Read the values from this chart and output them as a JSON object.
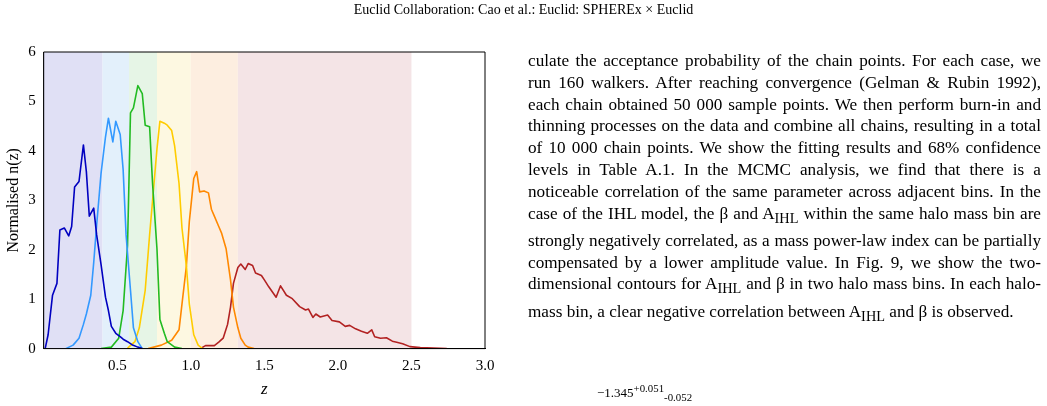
{
  "chart_data": {
    "type": "line",
    "title": "Euclid Collaboration: Cao et al.: Euclid: SPHEREx × Euclid",
    "xlabel": "z",
    "ylabel": "Normalised n(z)",
    "xlim": [
      0,
      3
    ],
    "xticks": [
      0.5,
      {
        "value": 1,
        "label": "1.0"
      },
      1.5,
      {
        "value": 2,
        "label": "2.0"
      },
      2.5,
      {
        "value": 3,
        "label": "3.0"
      }
    ],
    "ylim": [
      0,
      6
    ],
    "yticks": [
      0,
      1,
      2,
      3,
      4,
      5,
      6
    ],
    "grid": false,
    "legend": false,
    "marker": "none",
    "line_style": "solid",
    "bands": [
      {
        "axis": "x",
        "from": 0,
        "to": 0.4,
        "color": "#e0e0f5"
      },
      {
        "axis": "x",
        "from": 0.4,
        "to": 0.58,
        "color": "#e3f0fb"
      },
      {
        "axis": "x",
        "from": 0.58,
        "to": 0.77,
        "color": "#e6f5e6"
      },
      {
        "axis": "x",
        "from": 0.77,
        "to": 1.0,
        "color": "#fdf8e1"
      },
      {
        "axis": "x",
        "from": 1.0,
        "to": 1.32,
        "color": "#fdeee0"
      },
      {
        "axis": "x",
        "from": 1.32,
        "to": 2.5,
        "color": "#f4e4e6"
      }
    ],
    "series": [
      {
        "color": "#0000c0",
        "x": [
          0.01,
          0.03,
          0.06,
          0.09,
          0.11,
          0.14,
          0.17,
          0.19,
          0.21,
          0.24,
          0.27,
          0.29,
          0.31,
          0.34,
          0.36,
          0.39,
          0.42,
          0.44,
          0.46,
          0.49,
          0.52,
          0.54,
          0.57,
          0.6,
          0.64,
          0.67
        ],
        "values": [
          0,
          0.28,
          1.08,
          1.32,
          2.4,
          2.44,
          2.28,
          2.47,
          3.27,
          3.38,
          4.12,
          3.58,
          2.68,
          2.84,
          2.3,
          1.7,
          1.04,
          0.77,
          0.45,
          0.31,
          0.24,
          0.19,
          0.14,
          0.08,
          0.03,
          0
        ]
      },
      {
        "color": "#3399ff",
        "x": [
          0.15,
          0.2,
          0.24,
          0.27,
          0.29,
          0.32,
          0.34,
          0.36,
          0.39,
          0.42,
          0.44,
          0.47,
          0.49,
          0.52,
          0.54,
          0.56,
          0.59,
          0.61,
          0.64,
          0.67
        ],
        "values": [
          0,
          0.07,
          0.21,
          0.49,
          0.7,
          1.08,
          1.74,
          2.5,
          3.55,
          4.28,
          4.66,
          4.18,
          4.6,
          4.33,
          3.62,
          2.3,
          1.18,
          0.42,
          0.14,
          0
        ]
      },
      {
        "color": "#22bb22",
        "x": [
          0.39,
          0.46,
          0.51,
          0.54,
          0.57,
          0.59,
          0.61,
          0.64,
          0.67,
          0.69,
          0.72,
          0.74,
          0.77,
          0.79,
          0.82,
          0.84,
          0.89,
          0.94
        ],
        "values": [
          0,
          0.03,
          0.21,
          0.77,
          2.09,
          4.77,
          4.87,
          5.32,
          5.16,
          4.52,
          4.49,
          3.34,
          2.02,
          0.59,
          0.31,
          0.14,
          0.03,
          0
        ]
      },
      {
        "color": "#ffcc00",
        "x": [
          0.57,
          0.62,
          0.65,
          0.69,
          0.72,
          0.74,
          0.77,
          0.79,
          0.82,
          0.84,
          0.87,
          0.89,
          0.92,
          0.94,
          0.97,
          0.99,
          1.02,
          1.05,
          1.08
        ],
        "values": [
          0.01,
          0.14,
          0.42,
          1.18,
          2.3,
          2.99,
          4.04,
          4.6,
          4.56,
          4.52,
          4.41,
          4.1,
          3.34,
          2.44,
          1.67,
          0.9,
          0.28,
          0.07,
          0
        ]
      },
      {
        "color": "#ff8800",
        "x": [
          0.71,
          0.8,
          0.87,
          0.92,
          0.94,
          0.97,
          0.99,
          1.02,
          1.04,
          1.06,
          1.09,
          1.12,
          1.14,
          1.16,
          1.19,
          1.21,
          1.24,
          1.27,
          1.29,
          1.32,
          1.34,
          1.37,
          1.39,
          1.43
        ],
        "values": [
          0,
          0.07,
          0.17,
          0.38,
          0.9,
          1.67,
          2.57,
          3.44,
          3.58,
          3.17,
          3.19,
          3.15,
          2.82,
          2.68,
          2.47,
          2.33,
          2.02,
          1.39,
          0.84,
          0.42,
          0.21,
          0.07,
          0.03,
          0
        ]
      },
      {
        "color": "#b22222",
        "x": [
          1.07,
          1.1,
          1.16,
          1.19,
          1.22,
          1.25,
          1.27,
          1.29,
          1.32,
          1.34,
          1.37,
          1.39,
          1.42,
          1.44,
          1.48,
          1.5,
          1.53,
          1.58,
          1.61,
          1.65,
          1.69,
          1.74,
          1.78,
          1.8,
          1.83,
          1.85,
          1.88,
          1.93,
          1.96,
          2.01,
          2.05,
          2.08,
          2.12,
          2.16,
          2.2,
          2.23,
          2.25,
          2.29,
          2.33,
          2.37,
          2.4,
          2.44,
          2.49,
          2.56,
          2.65,
          2.74
        ],
        "values": [
          0.01,
          0.06,
          0.06,
          0.13,
          0.21,
          0.49,
          0.84,
          1.32,
          1.64,
          1.71,
          1.6,
          1.72,
          1.68,
          1.53,
          1.48,
          1.39,
          1.25,
          1.04,
          1.27,
          1.08,
          1.01,
          0.85,
          0.78,
          0.8,
          0.63,
          0.7,
          0.64,
          0.68,
          0.57,
          0.54,
          0.45,
          0.47,
          0.4,
          0.35,
          0.31,
          0.38,
          0.24,
          0.21,
          0.22,
          0.15,
          0.13,
          0.1,
          0.04,
          0.02,
          0.01,
          0
        ]
      }
    ],
    "annotations": [
      "culate the acceptance probability of the chain points. For each case, we run 160 walkers. After reaching convergence (Gelman & Rubin 1992), each chain obtained 50 000 sample points. We then perform burn-in and thinning processes on the data and combine all chains, resulting in a total of 10 000 chain points. We show the fitting results and 68% confidence levels in Table A.1. In the MCMC analysis, we find that there is a noticeable correlation of the same parameter across adjacent bins. In the case of the IHL model, the β and A$_{IHL}$ within the same halo mass bin are strongly negatively correlated, as a mass power-law index can be partially compensated by a lower amplitude value. In Fig. 9, we show the two-dimensional contours for A$_{IHL}$ and β in two halo mass bins. In each halo-mass bin, a clear negative correlation between A$_{IHL}$ and β is observed.",
      "−1.345$^{+0.051}$$_{-0.052}$"
    ]
  }
}
